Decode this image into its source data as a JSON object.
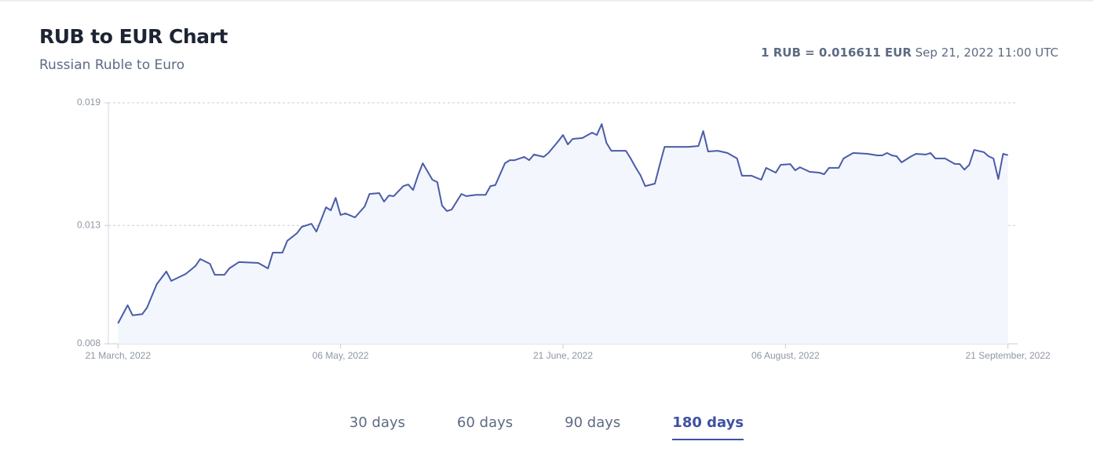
{
  "header": {
    "title": "RUB to EUR Chart",
    "subtitle": "Russian Ruble to Euro",
    "rate": "1 RUB = 0.016611 EUR",
    "timestamp": "Sep 21, 2022 11:00 UTC"
  },
  "chart_data": {
    "type": "line",
    "x": [
      "2022-03-21",
      "2022-03-23",
      "2022-03-24",
      "2022-03-26",
      "2022-03-27",
      "2022-03-29",
      "2022-03-31",
      "2022-04-01",
      "2022-04-04",
      "2022-04-06",
      "2022-04-07",
      "2022-04-09",
      "2022-04-10",
      "2022-04-12",
      "2022-04-13",
      "2022-04-15",
      "2022-04-19",
      "2022-04-21",
      "2022-04-22",
      "2022-04-24",
      "2022-04-25",
      "2022-04-27",
      "2022-04-28",
      "2022-04-30",
      "2022-05-01",
      "2022-05-02",
      "2022-05-03",
      "2022-05-04",
      "2022-05-05",
      "2022-05-06",
      "2022-05-07",
      "2022-05-09",
      "2022-05-11",
      "2022-05-12",
      "2022-05-14",
      "2022-05-15",
      "2022-05-16",
      "2022-05-17",
      "2022-05-19",
      "2022-05-20",
      "2022-05-21",
      "2022-05-22",
      "2022-05-23",
      "2022-05-25",
      "2022-05-26",
      "2022-05-27",
      "2022-05-28",
      "2022-05-29",
      "2022-05-31",
      "2022-06-01",
      "2022-06-03",
      "2022-06-05",
      "2022-06-06",
      "2022-06-07",
      "2022-06-09",
      "2022-06-10",
      "2022-06-11",
      "2022-06-13",
      "2022-06-14",
      "2022-06-15",
      "2022-06-17",
      "2022-06-18",
      "2022-06-20",
      "2022-06-21",
      "2022-06-22",
      "2022-06-23",
      "2022-06-25",
      "2022-06-27",
      "2022-06-28",
      "2022-06-29",
      "2022-06-30",
      "2022-07-01",
      "2022-07-04",
      "2022-07-05",
      "2022-07-06",
      "2022-07-07",
      "2022-07-08",
      "2022-07-10",
      "2022-07-11",
      "2022-07-12",
      "2022-07-14",
      "2022-07-17",
      "2022-07-19",
      "2022-07-20",
      "2022-07-21",
      "2022-07-23",
      "2022-07-25",
      "2022-07-27",
      "2022-07-28",
      "2022-07-30",
      "2022-08-01",
      "2022-08-02",
      "2022-08-04",
      "2022-08-05",
      "2022-08-07",
      "2022-08-08",
      "2022-08-09",
      "2022-08-11",
      "2022-08-13",
      "2022-08-14",
      "2022-08-15",
      "2022-08-17",
      "2022-08-18",
      "2022-08-20",
      "2022-08-23",
      "2022-08-25",
      "2022-08-26",
      "2022-08-27",
      "2022-08-28",
      "2022-08-29",
      "2022-08-30",
      "2022-09-01",
      "2022-09-02",
      "2022-09-04",
      "2022-09-05",
      "2022-09-06",
      "2022-09-08",
      "2022-09-10",
      "2022-09-11",
      "2022-09-12",
      "2022-09-13",
      "2022-09-14",
      "2022-09-16",
      "2022-09-17",
      "2022-09-18",
      "2022-09-19",
      "2022-09-20",
      "2022-09-21"
    ],
    "series": [
      {
        "color": "#4a5ca8",
        "values": [
          0.00893,
          0.00976,
          0.0093,
          0.00935,
          0.00965,
          0.01072,
          0.0113,
          0.01087,
          0.01119,
          0.01155,
          0.01187,
          0.01165,
          0.01115,
          0.01115,
          0.01144,
          0.01173,
          0.01169,
          0.01144,
          0.01216,
          0.01216,
          0.0127,
          0.01305,
          0.01334,
          0.01348,
          0.01312,
          0.01366,
          0.01423,
          0.01409,
          0.01466,
          0.01388,
          0.01395,
          0.01377,
          0.01427,
          0.01484,
          0.01488,
          0.01449,
          0.01477,
          0.01474,
          0.0152,
          0.01527,
          0.01502,
          0.01567,
          0.01624,
          0.01549,
          0.01538,
          0.01431,
          0.01406,
          0.01413,
          0.01484,
          0.01474,
          0.0148,
          0.0148,
          0.0152,
          0.01524,
          0.01624,
          0.01638,
          0.01638,
          0.01653,
          0.01638,
          0.01664,
          0.01653,
          0.01671,
          0.01724,
          0.01753,
          0.0171,
          0.01735,
          0.01739,
          0.01764,
          0.01753,
          0.01803,
          0.01717,
          0.01681,
          0.01681,
          0.01646,
          0.01606,
          0.0157,
          0.0152,
          0.01531,
          0.01617,
          0.01699,
          0.01699,
          0.01699,
          0.01703,
          0.01771,
          0.01678,
          0.01681,
          0.01671,
          0.01646,
          0.01567,
          0.01567,
          0.01549,
          0.01603,
          0.01581,
          0.01617,
          0.0162,
          0.01592,
          0.01606,
          0.01585,
          0.01581,
          0.01574,
          0.01603,
          0.01603,
          0.01646,
          0.01671,
          0.01667,
          0.0166,
          0.0166,
          0.01671,
          0.0166,
          0.01656,
          0.01628,
          0.01656,
          0.01667,
          0.01664,
          0.01671,
          0.01646,
          0.01646,
          0.01621,
          0.01621,
          0.01595,
          0.01617,
          0.01685,
          0.01675,
          0.01656,
          0.01646,
          0.01552,
          0.01667,
          0.016611
        ]
      }
    ],
    "xlim": [
      "2022-03-19",
      "2022-09-23"
    ],
    "xticks": [
      {
        "value": "2022-03-21",
        "label": "21 March, 2022"
      },
      {
        "value": "2022-05-06",
        "label": "06 May, 2022"
      },
      {
        "value": "2022-06-21",
        "label": "21 June, 2022"
      },
      {
        "value": "2022-08-06",
        "label": "06 August, 2022"
      },
      {
        "value": "2022-09-21",
        "label": "21 September, 2022"
      }
    ],
    "ylim": [
      0.008,
      0.019
    ],
    "yticks": [
      0.008,
      0.0134,
      0.019
    ],
    "ytick_labels": [
      "0.008",
      "0.013",
      "0.019"
    ],
    "grid": true
  },
  "tabs": {
    "items": [
      "30 days",
      "60 days",
      "90 days",
      "180 days"
    ],
    "active": 3
  }
}
